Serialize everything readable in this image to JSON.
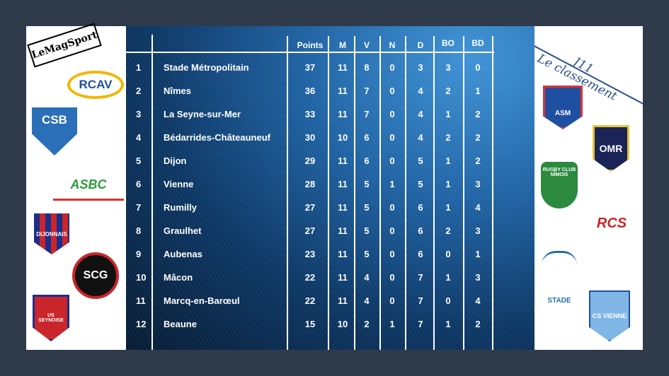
{
  "title": {
    "round": "J11",
    "subtitle": "Le classement"
  },
  "table": {
    "headers": [
      "Points",
      "M",
      "V",
      "N",
      "D",
      "BO",
      "BD"
    ],
    "rows": [
      {
        "rank": "1",
        "team": "Stade Métropolitain",
        "values": [
          "37",
          "11",
          "8",
          "0",
          "3",
          "3",
          "0"
        ]
      },
      {
        "rank": "2",
        "team": "Nîmes",
        "values": [
          "36",
          "11",
          "7",
          "0",
          "4",
          "2",
          "1"
        ]
      },
      {
        "rank": "3",
        "team": "La Seyne-sur-Mer",
        "values": [
          "33",
          "11",
          "7",
          "0",
          "4",
          "1",
          "2"
        ]
      },
      {
        "rank": "4",
        "team": "Bédarrides-Châteauneuf",
        "values": [
          "30",
          "10",
          "6",
          "0",
          "4",
          "2",
          "2"
        ]
      },
      {
        "rank": "5",
        "team": "Dijon",
        "values": [
          "29",
          "11",
          "6",
          "0",
          "5",
          "1",
          "2"
        ]
      },
      {
        "rank": "6",
        "team": "Vienne",
        "values": [
          "28",
          "11",
          "5",
          "1",
          "5",
          "1",
          "3"
        ]
      },
      {
        "rank": "7",
        "team": "Rumilly",
        "values": [
          "27",
          "11",
          "5",
          "0",
          "6",
          "1",
          "4"
        ]
      },
      {
        "rank": "8",
        "team": "Graulhet",
        "values": [
          "27",
          "11",
          "5",
          "0",
          "6",
          "2",
          "3"
        ]
      },
      {
        "rank": "9",
        "team": "Aubenas",
        "values": [
          "23",
          "11",
          "5",
          "0",
          "6",
          "0",
          "1"
        ]
      },
      {
        "rank": "10",
        "team": "Mâcon",
        "values": [
          "22",
          "11",
          "4",
          "0",
          "7",
          "1",
          "3"
        ]
      },
      {
        "rank": "11",
        "team": "Marcq-en-Barœul",
        "values": [
          "22",
          "11",
          "4",
          "0",
          "7",
          "0",
          "4"
        ]
      },
      {
        "rank": "12",
        "team": "Beaune",
        "values": [
          "15",
          "10",
          "2",
          "1",
          "7",
          "1",
          "2"
        ]
      }
    ]
  },
  "logos": {
    "left": [
      "LeMagSport",
      "RCAV",
      "CSB",
      "ASBC",
      "Stade Dijonnais",
      "SCG",
      "US Seynoise"
    ],
    "right": [
      "ASM",
      "OMR",
      "Rugby Club Nîmois",
      "RCS",
      "Stade Métropolitain",
      "CS Vienne"
    ]
  },
  "colors": {
    "background": "#2f3b4b",
    "board": "#1f62a3",
    "title": "#2a4f8a"
  }
}
